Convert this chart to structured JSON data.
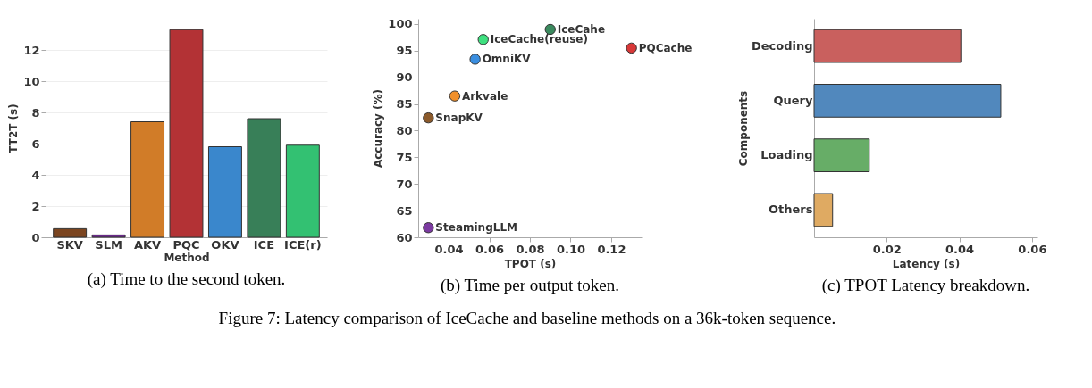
{
  "chart_data": [
    {
      "type": "bar",
      "title": "(a) Time to the second token.",
      "xlabel": "Method",
      "ylabel": "TT2T (s)",
      "categories": [
        "SKV",
        "SLM",
        "AKV",
        "PQC",
        "OKV",
        "ICE",
        "ICE(r)"
      ],
      "values": [
        0.55,
        0.15,
        7.4,
        13.3,
        5.8,
        7.6,
        5.9
      ],
      "colors": [
        "#7b4520",
        "#6a2a8a",
        "#d17c28",
        "#b33235",
        "#3a87cc",
        "#387f58",
        "#33c172"
      ],
      "ylim": [
        0,
        14
      ],
      "yticks": [
        0,
        2,
        4,
        6,
        8,
        10,
        12
      ],
      "grid": "y"
    },
    {
      "type": "scatter",
      "title": "(b) Time per output token.",
      "xlabel": "TPOT (s)",
      "ylabel": "Accuracy (%)",
      "series": [
        {
          "name": "SteamingLLM",
          "color": "#7b3aa0",
          "x": [
            0.03
          ],
          "values": [
            61.8
          ]
        },
        {
          "name": "SnapKV",
          "color": "#8b5a2b",
          "x": [
            0.03
          ],
          "values": [
            82.4
          ]
        },
        {
          "name": "Arkvale",
          "color": "#f0902c",
          "x": [
            0.043
          ],
          "values": [
            86.5
          ]
        },
        {
          "name": "OmniKV",
          "color": "#3a8ee0",
          "x": [
            0.053
          ],
          "values": [
            93.4
          ]
        },
        {
          "name": "IceCache(reuse)",
          "color": "#3ee07f",
          "x": [
            0.057
          ],
          "values": [
            97.1
          ]
        },
        {
          "name": "IceCahe",
          "color": "#3a8a5e",
          "x": [
            0.09
          ],
          "values": [
            99.0
          ]
        },
        {
          "name": "PQCache",
          "color": "#d83838",
          "x": [
            0.13
          ],
          "values": [
            95.5
          ]
        }
      ],
      "xlim": [
        0.025,
        0.135
      ],
      "xticks": [
        0.04,
        0.06,
        0.08,
        {
          "value": 0.1,
          "label": "0.10"
        },
        0.12
      ],
      "ylim": [
        60,
        101
      ],
      "yticks": [
        60,
        65,
        70,
        75,
        80,
        85,
        90,
        95,
        100
      ],
      "marker": "circle",
      "annotations": [
        "Figure 7: Latency comparison of IceCache and baseline methods on a 36k-token sequence."
      ]
    },
    {
      "type": "bar",
      "orientation": "horizontal",
      "title": "(c) TPOT Latency breakdown.",
      "xlabel": "Latency (s)",
      "ylabel": "Components",
      "categories": [
        "Decoding",
        "Query",
        "Loading",
        "Others"
      ],
      "values": [
        0.0404,
        0.0514,
        0.0152,
        0.0051
      ],
      "colors": [
        "#c9605e",
        "#5188bd",
        "#67ad67",
        "#dfaa62"
      ],
      "xlim": [
        0,
        0.0615
      ],
      "xticks": [
        0.02,
        0.04,
        0.06
      ],
      "grid": false
    }
  ]
}
